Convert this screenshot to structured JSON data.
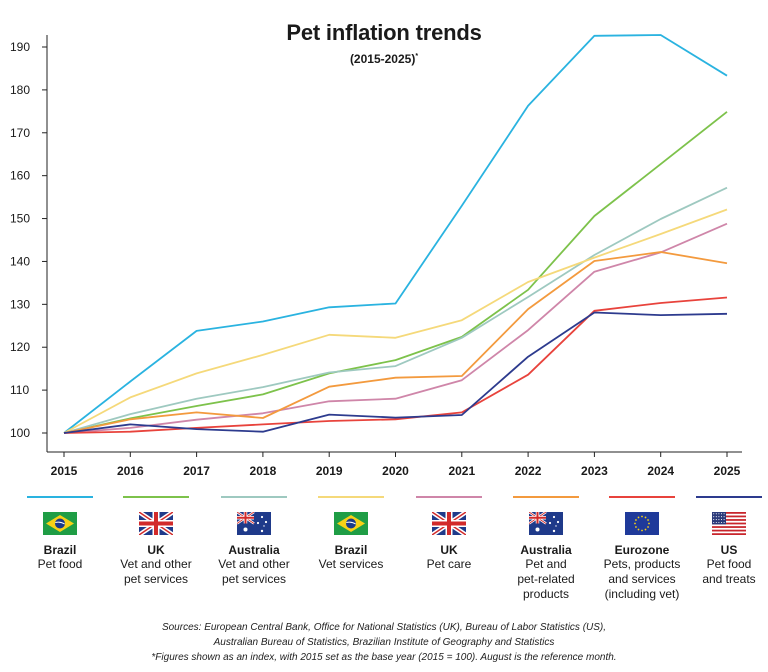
{
  "chart_data": {
    "type": "line",
    "title": "Pet inflation trends",
    "subtitle": "(2015-2025)",
    "subtitle_mark": "*",
    "x": [
      2015,
      2016,
      2017,
      2018,
      2019,
      2020,
      2021,
      2022,
      2023,
      2024,
      2025
    ],
    "yticks": [
      100,
      110,
      120,
      130,
      140,
      150,
      160,
      170,
      180,
      190
    ],
    "ylim": [
      98,
      193
    ],
    "grid": false,
    "legend_position": "bottom",
    "series": [
      {
        "country": "Brazil",
        "desc": "Pet food",
        "flag": "brazil-flag",
        "color": "#2ab3e0",
        "values": [
          100,
          112,
          123.8,
          126,
          129.3,
          130.2,
          153,
          176.3,
          192.6,
          192.8,
          183.3
        ]
      },
      {
        "country": "UK",
        "desc": "Vet and other pet services",
        "flag": "uk-flag",
        "color": "#7dc24b",
        "values": [
          100,
          103.4,
          106.3,
          109,
          113.9,
          117,
          122.4,
          133.4,
          150.6,
          162.7,
          174.9
        ]
      },
      {
        "country": "Australia",
        "desc": "Vet and other pet services",
        "flag": "australia-flag",
        "color": "#9ec9c0",
        "values": [
          100,
          104.4,
          108,
          110.7,
          114.1,
          115.6,
          122.2,
          131.7,
          141.5,
          149.9,
          157.2
        ]
      },
      {
        "country": "Brazil",
        "desc": "Vet services",
        "flag": "brazil-flag",
        "color": "#f5d97a",
        "values": [
          100,
          108.3,
          113.9,
          118.2,
          122.9,
          122.2,
          126.3,
          135.2,
          140.9,
          146.4,
          152.1
        ]
      },
      {
        "country": "UK",
        "desc": "Pet care",
        "flag": "uk-flag",
        "color": "#cf86a9",
        "values": [
          100,
          101.2,
          103.1,
          104.6,
          107.4,
          108,
          112.3,
          124,
          137.6,
          142.1,
          148.8
        ]
      },
      {
        "country": "Australia",
        "desc": "Pet and pet-related products",
        "flag": "australia-flag",
        "color": "#f39a3e",
        "values": [
          100,
          103.2,
          104.8,
          103.5,
          110.8,
          112.9,
          113.3,
          128.9,
          140.1,
          142.2,
          139.6
        ]
      },
      {
        "country": "Eurozone",
        "desc": "Pets, products and services (including vet)",
        "flag": "eu-flag",
        "color": "#e8433c",
        "values": [
          100,
          100.3,
          101.2,
          102,
          102.8,
          103.2,
          104.8,
          113.6,
          128.5,
          130.3,
          131.6
        ]
      },
      {
        "country": "US",
        "desc": "Pet food and treats",
        "flag": "us-flag",
        "color": "#2d3b8e",
        "values": [
          100,
          102,
          100.9,
          100.3,
          104.3,
          103.6,
          104.2,
          117.8,
          128.1,
          127.5,
          127.8
        ]
      }
    ]
  },
  "legend_lines": [
    [
      "Pet food"
    ],
    [
      "Vet and other",
      "pet services"
    ],
    [
      "Vet and other",
      "pet services"
    ],
    [
      "Vet services"
    ],
    [
      "Pet care"
    ],
    [
      "Pet and",
      "pet-related",
      "products"
    ],
    [
      "Pets, products",
      "and services",
      "(including vet)"
    ],
    [
      "Pet food",
      "and treats"
    ]
  ],
  "sources": {
    "line1": "Sources: European Central Bank, Office for National Statistics (UK), Bureau of Labor Statistics (US),",
    "line2": "Australian Bureau of Statistics, Brazilian Institute of Geography and Statistics",
    "line3": "*Figures shown as an index, with 2015 set as the base year (2015 = 100). August is the reference month."
  }
}
